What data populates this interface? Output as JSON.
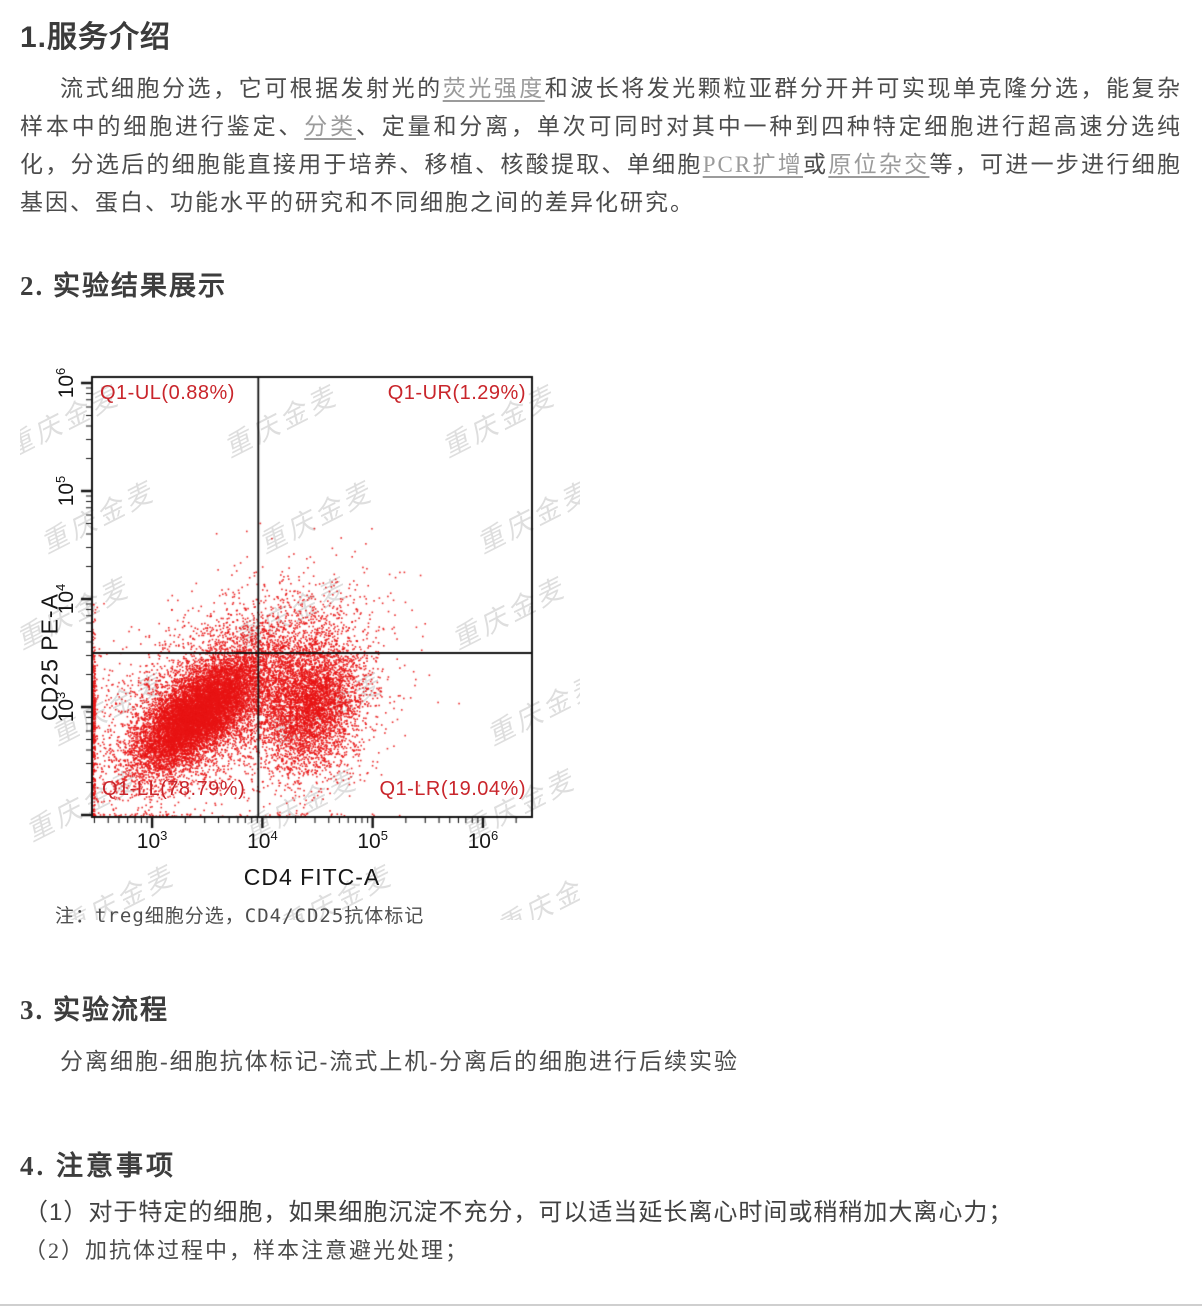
{
  "sections": {
    "s1_title": "1.服务介绍",
    "intro": {
      "pre": "流式细胞分选，它可根据发射光的",
      "link1": "荧光强度",
      "mid1": "和波长将发光颗粒亚群分开并可实现单克隆分选，能复杂样本中的细胞进行鉴定、",
      "link2": "分类",
      "mid2": "、定量和分离，单次可同时对其中一种到四种特定细胞进行超高速分选纯化，分选后的细胞能直接用于培养、移植、核酸提取、单细胞",
      "link3": "PCR扩增",
      "mid3": "或",
      "link4": "原位杂交",
      "post": "等，可进一步进行细胞基因、蛋白、功能水平的研究和不同细胞之间的差异化研究。"
    },
    "s2_title": "2. 实验结果展示",
    "figure_note": "注：treg细胞分选，CD4/CD25抗体标记",
    "s3_title": "3. 实验流程",
    "s3_text": "分离细胞-细胞抗体标记-流式上机-分离后的细胞进行后续实验",
    "s4_title": "4.  注意事项",
    "s4_item1": "（1）对于特定的细胞，如果细胞沉淀不充分，可以适当延长离心时间或稍稍加大离心力；",
    "s4_item2": "（2）加抗体过程中，样本注意避光处理；"
  },
  "chart_data": {
    "type": "scatter",
    "subtype": "flow_cytometry_quadrant_plot",
    "xlabel": "CD4 FITC-A",
    "ylabel": "CD25 PE-A",
    "x_scale": "log",
    "y_scale": "log",
    "tick_base": "10",
    "tick_exponents": [
      3,
      4,
      5,
      6
    ],
    "x_log_range": [
      2.455,
      6.445
    ],
    "y_log_range": [
      1.981,
      6.056
    ],
    "gate": {
      "x_log": 3.963,
      "y_log": 3.5
    },
    "quadrants": [
      {
        "id": "UL",
        "label": "Q1-UL(0.88%)",
        "pct": 0.88
      },
      {
        "id": "UR",
        "label": "Q1-UR(1.29%)",
        "pct": 1.29
      },
      {
        "id": "LL",
        "label": "Q1-LL(78.79%)",
        "pct": 78.79
      },
      {
        "id": "LR",
        "label": "Q1-LR(19.04%)",
        "pct": 19.04
      }
    ],
    "populations": [
      {
        "name": "LL-core",
        "n": 9500,
        "cx": 3.4,
        "cy": 2.92,
        "sx": 0.27,
        "sy": 0.26,
        "rho": 0.66,
        "clamp": true
      },
      {
        "name": "LL-halo",
        "n": 2600,
        "cx": 3.43,
        "cy": 2.97,
        "sx": 0.55,
        "sy": 0.5,
        "rho": 0.55,
        "clamp": true
      },
      {
        "name": "LR-core",
        "n": 3600,
        "cx": 4.46,
        "cy": 3.03,
        "sx": 0.21,
        "sy": 0.3,
        "rho": 0.15,
        "clamp": true
      },
      {
        "name": "LR-halo",
        "n": 1100,
        "cx": 4.42,
        "cy": 3.08,
        "sx": 0.4,
        "sy": 0.5,
        "rho": 0.2,
        "clamp": true
      },
      {
        "name": "gate-bridge",
        "n": 900,
        "cx": 3.93,
        "cy": 3.2,
        "sx": 0.26,
        "sy": 0.33,
        "rho": 0.15,
        "clamp": false
      },
      {
        "name": "upper-spill",
        "n": 330,
        "cx": 4.15,
        "cy": 3.7,
        "sx": 0.38,
        "sy": 0.25,
        "rho": 0.15,
        "clamp": false
      },
      {
        "name": "left-edge",
        "n": 380,
        "cx": 2.36,
        "cy": 2.95,
        "sx": 0.14,
        "sy": 0.42,
        "rho": 0.0,
        "clamp": true
      }
    ],
    "point_color": "#e81414",
    "axis_color": "#141414",
    "quadrant_label_color": "#c9252b",
    "watermark": {
      "text": "重庆金麦",
      "color": "rgba(90,90,90,0.20)"
    }
  }
}
